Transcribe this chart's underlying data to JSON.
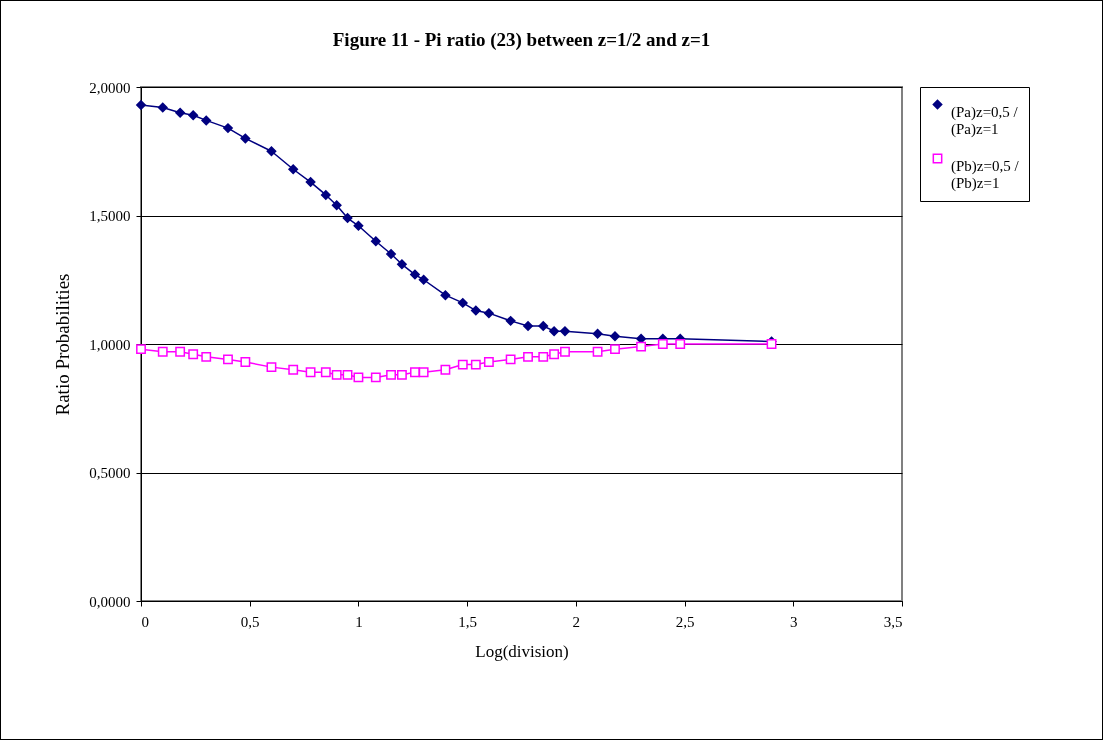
{
  "chart_data": {
    "type": "line",
    "title": "Figure 11 - Pi ratio (23) between z=1/2 and z=1",
    "xlabel": "Log(division)",
    "ylabel": "Ratio Probabilities",
    "x": [
      0,
      0.1,
      0.18,
      0.24,
      0.3,
      0.4,
      0.48,
      0.6,
      0.7,
      0.78,
      0.85,
      0.9,
      0.95,
      1,
      1.08,
      1.15,
      1.2,
      1.26,
      1.3,
      1.4,
      1.48,
      1.54,
      1.6,
      1.7,
      1.78,
      1.85,
      1.9,
      1.95,
      2.1,
      2.18,
      2.3,
      2.4,
      2.48,
      2.9
    ],
    "series": [
      {
        "name": "(Pa)z=0,5 / (Pa)z=1",
        "color": "#000080",
        "marker": "diamond",
        "values": [
          1.93,
          1.92,
          1.9,
          1.89,
          1.87,
          1.84,
          1.8,
          1.75,
          1.68,
          1.63,
          1.58,
          1.54,
          1.49,
          1.46,
          1.4,
          1.35,
          1.31,
          1.27,
          1.25,
          1.19,
          1.16,
          1.13,
          1.12,
          1.09,
          1.07,
          1.07,
          1.05,
          1.05,
          1.04,
          1.03,
          1.02,
          1.02,
          1.02,
          1.01
        ]
      },
      {
        "name": "(Pb)z=0,5 / (Pb)z=1",
        "color": "#ff00ff",
        "marker": "square",
        "values": [
          0.98,
          0.97,
          0.97,
          0.96,
          0.95,
          0.94,
          0.93,
          0.91,
          0.9,
          0.89,
          0.89,
          0.88,
          0.88,
          0.87,
          0.87,
          0.88,
          0.88,
          0.89,
          0.89,
          0.9,
          0.92,
          0.92,
          0.93,
          0.94,
          0.95,
          0.95,
          0.96,
          0.97,
          0.97,
          0.98,
          0.99,
          1,
          1,
          1
        ]
      }
    ],
    "xlim": [
      0,
      3.5
    ],
    "xticks": [
      0,
      {
        "value": 0.5,
        "label": "0,5"
      },
      1,
      {
        "value": 1.5,
        "label": "1,5"
      },
      2,
      {
        "value": 2.5,
        "label": "2,5"
      },
      3,
      {
        "value": 3.5,
        "label": "3,5"
      }
    ],
    "ylim": [
      0,
      2
    ],
    "yticks": [
      {
        "value": 0,
        "label": "0,0000"
      },
      {
        "value": 0.5,
        "label": "0,5000"
      },
      {
        "value": 1,
        "label": "1,0000"
      },
      {
        "value": 1.5,
        "label": "1,5000"
      },
      {
        "value": 2,
        "label": "2,0000"
      }
    ],
    "grid": "y",
    "legend": "right"
  }
}
